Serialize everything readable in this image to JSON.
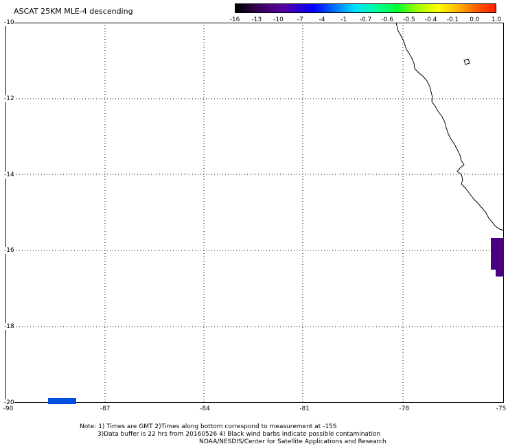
{
  "title": "ASCAT 25KM MLE-4 descending",
  "colorbar": {
    "labels": [
      "-16",
      "-13",
      "-10",
      "-7",
      "-4",
      "-1",
      "-0.7",
      "-0.6",
      "-0.5",
      "-0.4",
      "-0.1",
      "0.0",
      "1.0"
    ]
  },
  "axes": {
    "y_labels": [
      "-10",
      "-12",
      "-14",
      "-16",
      "-18",
      "-20"
    ],
    "x_labels": [
      "-90",
      "-87",
      "-84",
      "-81",
      "-78",
      "-75"
    ]
  },
  "data_features": {
    "purple_patch_color": "#4a0080",
    "blue_marker_color": "#0050e0",
    "coastline_color": "#000000"
  },
  "notes": {
    "line1": "Note: 1) Times are GMT 2)Times along bottom correspond to measurement at -15S",
    "line2": "3)Data buffer is 22 hrs from 20160526 4) Black wind barbs indicate possible contamination",
    "line3": "NOAA/NESDIS/Center for Satellite Applications and Research"
  }
}
